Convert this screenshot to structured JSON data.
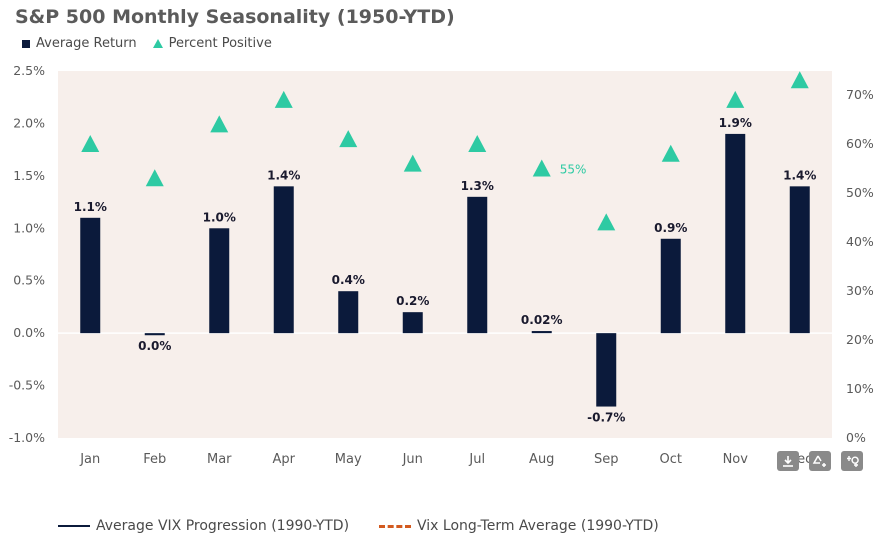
{
  "title": "S&P 500 Monthly Seasonality (1950-YTD)",
  "legend": {
    "average_return": "Average Return",
    "percent_positive": "Percent Positive"
  },
  "bottom_legend": {
    "vix_progression": "Average VIX Progression (1990-YTD)",
    "vix_average": "Vix Long-Term Average (1990-YTD)"
  },
  "toolbar": {
    "download_icon": "download-icon",
    "recycle_icon": "recycle-add-icon",
    "settings_icon": "settings-icon"
  },
  "colors": {
    "bar": "#0b1a3b",
    "triangle": "#2ecaa3",
    "plot_bg": "#f7efeb",
    "vix_line": "#0b1a3b",
    "vix_avg": "#d35a1f"
  },
  "chart_data": {
    "type": "bar",
    "categories": [
      "Jan",
      "Feb",
      "Mar",
      "Apr",
      "May",
      "Jun",
      "Jul",
      "Aug",
      "Sep",
      "Oct",
      "Nov",
      "Dec"
    ],
    "series": [
      {
        "name": "Average Return",
        "axis": "left",
        "values": [
          1.1,
          -0.02,
          1.0,
          1.4,
          0.4,
          0.2,
          1.3,
          0.02,
          -0.7,
          0.9,
          1.9,
          1.4
        ],
        "labels": [
          "1.1%",
          "0.0%",
          "1.0%",
          "1.4%",
          "0.4%",
          "0.2%",
          "1.3%",
          "0.02%",
          "-0.7%",
          "0.9%",
          "1.9%",
          "1.4%"
        ]
      },
      {
        "name": "Percent Positive",
        "axis": "right",
        "values": [
          60,
          53,
          64,
          69,
          61,
          56,
          60,
          55,
          44,
          58,
          69,
          73
        ],
        "labels": [
          "",
          "",
          "",
          "",
          "",
          "",
          "",
          "55%",
          "",
          "",
          "",
          ""
        ]
      }
    ],
    "y_left": {
      "ylim": [
        -1.0,
        2.5
      ],
      "ticks": [
        2.5,
        2.0,
        1.5,
        1.0,
        0.5,
        0.0,
        -0.5,
        -1.0
      ],
      "tick_labels": [
        "2.5%",
        "2.0%",
        "1.5%",
        "1.0%",
        "0.5%",
        "0.0%",
        "-0.5%",
        "-1.0%"
      ]
    },
    "y_right": {
      "ylim": [
        0,
        70
      ],
      "ticks": [
        70,
        60,
        50,
        40,
        30,
        20,
        10,
        0
      ],
      "tick_labels": [
        "70%",
        "60%",
        "50%",
        "40%",
        "30%",
        "20%",
        "10%",
        "0%"
      ]
    },
    "grid": false,
    "legend_position": "top-left"
  }
}
